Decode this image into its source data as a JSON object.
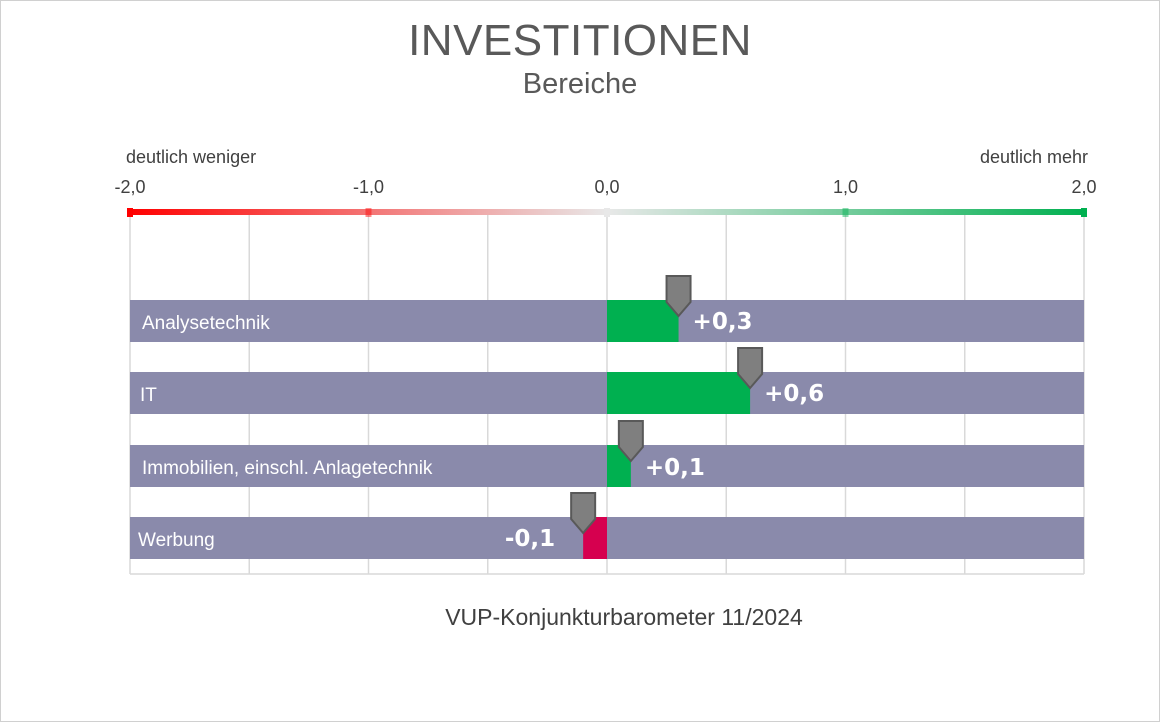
{
  "title": "INVESTITIONEN",
  "subtitle": "Bereiche",
  "scale_left_label": "deutlich weniger",
  "scale_right_label": "deutlich mehr",
  "footer": "VUP-Konjunkturbarometer 11/2024",
  "colors": {
    "track": "#8a8aab",
    "positive": "#00b050",
    "negative": "#d6004f",
    "marker": "#7f7f7f",
    "gradient_left": "#ff0000",
    "gradient_mid": "#e8e8e8",
    "gradient_right": "#00b050"
  },
  "chart_data": {
    "type": "bar",
    "orientation": "horizontal",
    "xlim": [
      -2.0,
      2.0
    ],
    "ticks": [
      "-2,0",
      "-1,0",
      "0,0",
      "1,0",
      "2,0"
    ],
    "tick_values": [
      -2,
      -1,
      0,
      1,
      2
    ],
    "grid": true,
    "categories": [
      "Analysetechnik",
      "IT",
      "Immobilien, einschl. Anlagetechnik",
      "Werbung"
    ],
    "values": [
      0.3,
      0.6,
      0.1,
      -0.1
    ],
    "value_labels": [
      "+0,3",
      "+0,6",
      "+0,1",
      "-0,1"
    ]
  }
}
